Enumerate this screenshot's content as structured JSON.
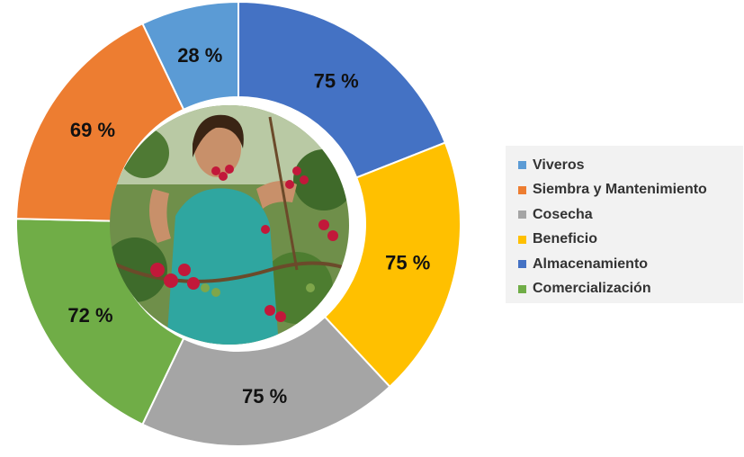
{
  "chart_data": {
    "type": "pie",
    "title": "",
    "legend_position": "right",
    "slices": [
      {
        "name": "Viveros",
        "label": "28 %",
        "value": 28,
        "color": "#5b9bd5"
      },
      {
        "name": "Almacenamiento",
        "label": "75 %",
        "value": 75,
        "color": "#4472c4"
      },
      {
        "name": "Beneficio",
        "label": "75 %",
        "value": 75,
        "color": "#ffc000"
      },
      {
        "name": "Cosecha",
        "label": "75 %",
        "value": 75,
        "color": "#a5a5a5"
      },
      {
        "name": "Comercialización",
        "label": "72 %",
        "value": 72,
        "color": "#70ad47"
      },
      {
        "name": "Siembra y Mantenimiento",
        "label": "69 %",
        "value": 69,
        "color": "#ed7d31"
      }
    ],
    "legend": [
      {
        "label": "Viveros",
        "color": "#5b9bd5"
      },
      {
        "label": "Siembra y Mantenimiento",
        "color": "#ed7d31"
      },
      {
        "label": "Cosecha",
        "color": "#a5a5a5"
      },
      {
        "label": "Beneficio",
        "color": "#ffc000"
      },
      {
        "label": "Almacenamiento",
        "color": "#4472c4"
      },
      {
        "label": "Comercialización",
        "color": "#70ad47"
      }
    ]
  }
}
